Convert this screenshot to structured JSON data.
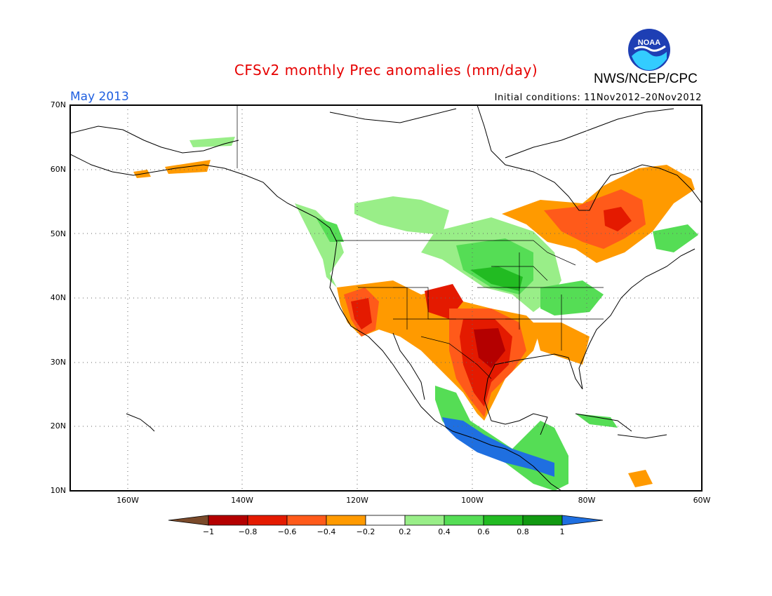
{
  "title": "CFSv2 monthly Prec anomalies (mm/day)",
  "agency": "NWS/NCEP/CPC",
  "logo_text": "NOAA",
  "month_label": "May 2013",
  "initial_conditions": "Initial conditions: 11Nov2012–20Nov2012",
  "lat_labels": [
    "70N",
    "60N",
    "50N",
    "40N",
    "30N",
    "20N",
    "10N"
  ],
  "lon_labels": [
    "160W",
    "140W",
    "120W",
    "100W",
    "80W",
    "60W"
  ],
  "colorbar": {
    "labels": [
      "−1",
      "−0.8",
      "−0.6",
      "−0.4",
      "−0.2",
      "0.2",
      "0.4",
      "0.6",
      "0.8",
      "1"
    ],
    "colors": [
      "#7a4a2a",
      "#b40000",
      "#e41a00",
      "#ff5a1a",
      "#ff9a00",
      "#ffffff",
      "#99ee88",
      "#55dd55",
      "#22bb22",
      "#119911",
      "#1f6fe0"
    ]
  },
  "map": {
    "projection": "latlon",
    "lon_range": [
      -170,
      -60
    ],
    "lat_range": [
      10,
      70
    ],
    "grid": "dotted"
  },
  "anomaly_regions": [
    {
      "name": "Southwest deficit",
      "class": "-0.6",
      "color": "#e41a00"
    },
    {
      "name": "Texas / Gulf coast deficit",
      "class": "-0.8",
      "color": "#b40000"
    },
    {
      "name": "Quebec / Labrador deficit",
      "class": "-0.6",
      "color": "#e41a00"
    },
    {
      "name": "Central plains / upper Midwest surplus",
      "class": "0.4",
      "color": "#55dd55"
    },
    {
      "name": "Pacific Northwest surplus",
      "class": "0.2",
      "color": "#99ee88"
    },
    {
      "name": "Southern Mexico / Central America surplus",
      "class": "1",
      "color": "#1f6fe0"
    }
  ]
}
